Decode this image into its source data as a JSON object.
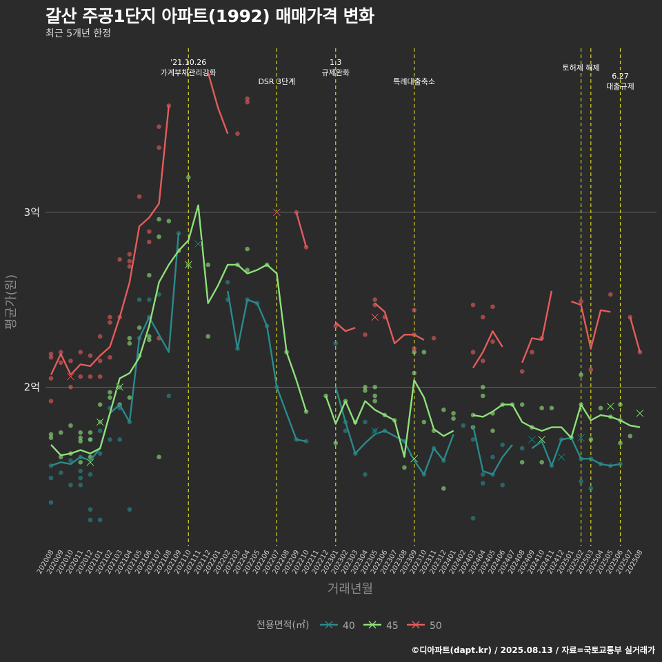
{
  "header": {
    "title": "갈산 주공1단지 아파트(1992) 매매가격 변화",
    "subtitle": "최근 5개년 한정"
  },
  "footer": {
    "caption": "©디아파트(dapt.kr) / 2025.08.13 / 자료=국토교통부 실거래가"
  },
  "colors": {
    "40": "#2a8a8c",
    "45": "#8ee07a",
    "50": "#e55c5c",
    "grid": "#7a7a7a",
    "vline": "#d6d62a"
  },
  "chart_data": {
    "type": "line",
    "xlabel": "거래년월",
    "ylabel": "평균가(원)",
    "x": [
      "202008",
      "202009",
      "202010",
      "202011",
      "202012",
      "202101",
      "202102",
      "202103",
      "202104",
      "202105",
      "202106",
      "202107",
      "202108",
      "202109",
      "202110",
      "202111",
      "202112",
      "202201",
      "202202",
      "202203",
      "202204",
      "202205",
      "202206",
      "202207",
      "202208",
      "202209",
      "202210",
      "202211",
      "202212",
      "202301",
      "202302",
      "202303",
      "202304",
      "202305",
      "202306",
      "202307",
      "202308",
      "202309",
      "202310",
      "202311",
      "202312",
      "202401",
      "202402",
      "202403",
      "202404",
      "202405",
      "202406",
      "202407",
      "202408",
      "202409",
      "202410",
      "202411",
      "202412",
      "202501",
      "202502",
      "202503",
      "202504",
      "202505",
      "202506",
      "202507",
      "202508"
    ],
    "ylim": [
      10900,
      39700
    ],
    "yticks": [
      {
        "value": 20000,
        "label": "2억"
      },
      {
        "value": 30000,
        "label": "3억"
      }
    ],
    "legend": {
      "title": "전용면적(㎡)",
      "position": "bottom",
      "items": [
        "40",
        "45",
        "50"
      ]
    },
    "series": [
      {
        "name": "40",
        "values": [
          15500,
          15700,
          15600,
          16000,
          15800,
          16500,
          18500,
          19000,
          18000,
          22800,
          24000,
          23000,
          22000,
          28800,
          null,
          null,
          null,
          null,
          25500,
          22200,
          25000,
          24800,
          23500,
          20000,
          18500,
          17000,
          16900,
          null,
          null,
          20000,
          18000,
          16200,
          16800,
          17300,
          17500,
          17200,
          16900,
          15800,
          15000,
          16500,
          15800,
          17300,
          null,
          17800,
          15200,
          15000,
          16000,
          16700,
          null,
          16500,
          16900,
          15500,
          17000,
          17100,
          15900,
          15900,
          15600,
          15500,
          15600,
          null,
          null
        ]
      },
      {
        "name": "45",
        "values": [
          16700,
          16100,
          16200,
          16400,
          16200,
          16500,
          18500,
          20500,
          20800,
          21700,
          23500,
          26000,
          27000,
          27800,
          28400,
          30400,
          24800,
          25800,
          27000,
          27000,
          26500,
          26700,
          27000,
          26500,
          22000,
          20400,
          18600,
          null,
          19500,
          17900,
          19200,
          17900,
          19200,
          18700,
          18400,
          18100,
          16000,
          20400,
          19400,
          17600,
          17200,
          17500,
          null,
          18400,
          18300,
          18600,
          19000,
          19000,
          18000,
          17700,
          17500,
          17700,
          17700,
          17100,
          19000,
          18100,
          18400,
          18300,
          18100,
          17800,
          17700
        ]
      },
      {
        "name": "50",
        "values": [
          20700,
          21900,
          20700,
          21300,
          21200,
          21800,
          22300,
          24000,
          26000,
          29200,
          29700,
          30500,
          36100,
          null,
          null,
          null,
          38000,
          36000,
          34500,
          null,
          36000,
          null,
          null,
          null,
          null,
          30000,
          28000,
          null,
          null,
          23700,
          23200,
          23400,
          null,
          24800,
          24300,
          22500,
          23000,
          23000,
          22700,
          null,
          21000,
          null,
          null,
          21100,
          22000,
          23200,
          22300,
          null,
          21400,
          22800,
          22700,
          25500,
          null,
          24900,
          24700,
          22200,
          24400,
          24300,
          null,
          24000,
          22000
        ]
      }
    ],
    "points": {
      "40": [
        [
          "202008",
          15500
        ],
        [
          "202008",
          14800
        ],
        [
          "202008",
          13400
        ],
        [
          "202009",
          15100
        ],
        [
          "202010",
          14400
        ],
        [
          "202010",
          15800
        ],
        [
          "202011",
          15200
        ],
        [
          "202011",
          14800
        ],
        [
          "202011",
          16000
        ],
        [
          "202011",
          14400
        ],
        [
          "202012",
          13000
        ],
        [
          "202012",
          12400
        ],
        [
          "202012",
          15000
        ],
        [
          "202012",
          17000
        ],
        [
          "202101",
          12400
        ],
        [
          "202101",
          17500
        ],
        [
          "202101",
          16200
        ],
        [
          "202102",
          17000
        ],
        [
          "202102",
          18800
        ],
        [
          "202103",
          18800
        ],
        [
          "202103",
          17000
        ],
        [
          "202104",
          13000
        ],
        [
          "202104",
          18000
        ],
        [
          "202105",
          25000
        ],
        [
          "202105",
          22800
        ],
        [
          "202106",
          25000
        ],
        [
          "202106",
          24000
        ],
        [
          "202107",
          25300
        ],
        [
          "202108",
          19500
        ],
        [
          "202109",
          28800
        ],
        [
          "202202",
          26000
        ],
        [
          "202202",
          25000
        ],
        [
          "202203",
          22200
        ],
        [
          "202204",
          25000
        ],
        [
          "202205",
          24800
        ],
        [
          "202206",
          23500
        ],
        [
          "202207",
          20000
        ],
        [
          "202209",
          17000
        ],
        [
          "202210",
          16900
        ],
        [
          "202301",
          22500
        ],
        [
          "202302",
          18000
        ],
        [
          "202302",
          17500
        ],
        [
          "202303",
          16200
        ],
        [
          "202304",
          18000
        ],
        [
          "202304",
          15000
        ],
        [
          "202305",
          17500
        ],
        [
          "202305",
          17500
        ],
        [
          "202306",
          17500
        ],
        [
          "202308",
          16900
        ],
        [
          "202310",
          15000
        ],
        [
          "202311",
          16500
        ],
        [
          "202312",
          15800
        ],
        [
          "202402",
          17800
        ],
        [
          "202403",
          17000
        ],
        [
          "202403",
          12500
        ],
        [
          "202404",
          15000
        ],
        [
          "202404",
          14500
        ],
        [
          "202405",
          16000
        ],
        [
          "202405",
          15000
        ],
        [
          "202406",
          14400
        ],
        [
          "202406",
          16700
        ],
        [
          "202408",
          16500
        ],
        [
          "202410",
          16900
        ],
        [
          "202411",
          15500
        ],
        [
          "202412",
          17000
        ],
        [
          "202501",
          17100
        ],
        [
          "202502",
          15900
        ],
        [
          "202502",
          14600
        ],
        [
          "202503",
          15900
        ],
        [
          "202503",
          14200
        ],
        [
          "202504",
          15600
        ],
        [
          "202505",
          15500
        ],
        [
          "202506",
          15600
        ]
      ],
      "45": [
        [
          "202008",
          17300
        ],
        [
          "202008",
          17100
        ],
        [
          "202009",
          17400
        ],
        [
          "202009",
          16000
        ],
        [
          "202010",
          17800
        ],
        [
          "202010",
          16200
        ],
        [
          "202011",
          17400
        ],
        [
          "202011",
          17100
        ],
        [
          "202011",
          16900
        ],
        [
          "202011",
          15700
        ],
        [
          "202012",
          17400
        ],
        [
          "202012",
          17000
        ],
        [
          "202012",
          16000
        ],
        [
          "202101",
          19000
        ],
        [
          "202101",
          18000
        ],
        [
          "202102",
          19700
        ],
        [
          "202102",
          19400
        ],
        [
          "202103",
          19000
        ],
        [
          "202103",
          20000
        ],
        [
          "202104",
          22800
        ],
        [
          "202104",
          22500
        ],
        [
          "202104",
          19400
        ],
        [
          "202105",
          21800
        ],
        [
          "202105",
          23400
        ],
        [
          "202106",
          22700
        ],
        [
          "202106",
          22900
        ],
        [
          "202106",
          26400
        ],
        [
          "202107",
          29600
        ],
        [
          "202107",
          28600
        ],
        [
          "202107",
          16000
        ],
        [
          "202108",
          29500
        ],
        [
          "202109",
          27800
        ],
        [
          "202110",
          32000
        ],
        [
          "202110",
          27000
        ],
        [
          "202112",
          27000
        ],
        [
          "202112",
          22900
        ],
        [
          "202203",
          27000
        ],
        [
          "202204",
          27900
        ],
        [
          "202204",
          26700
        ],
        [
          "202206",
          27000
        ],
        [
          "202208",
          22000
        ],
        [
          "202210",
          18600
        ],
        [
          "202212",
          19500
        ],
        [
          "202301",
          16800
        ],
        [
          "202302",
          19200
        ],
        [
          "202303",
          18000
        ],
        [
          "202304",
          19800
        ],
        [
          "202304",
          20000
        ],
        [
          "202305",
          19200
        ],
        [
          "202305",
          19500
        ],
        [
          "202305",
          20000
        ],
        [
          "202306",
          18400
        ],
        [
          "202307",
          18100
        ],
        [
          "202308",
          15400
        ],
        [
          "202309",
          22000
        ],
        [
          "202309",
          20800
        ],
        [
          "202310",
          22000
        ],
        [
          "202310",
          18000
        ],
        [
          "202311",
          17500
        ],
        [
          "202312",
          18700
        ],
        [
          "202312",
          14200
        ],
        [
          "202401",
          18500
        ],
        [
          "202401",
          18200
        ],
        [
          "202403",
          18400
        ],
        [
          "202403",
          17700
        ],
        [
          "202404",
          19500
        ],
        [
          "202404",
          20000
        ],
        [
          "202405",
          17500
        ],
        [
          "202405",
          18500
        ],
        [
          "202406",
          19000
        ],
        [
          "202407",
          19000
        ],
        [
          "202408",
          19000
        ],
        [
          "202408",
          15700
        ],
        [
          "202409",
          17700
        ],
        [
          "202410",
          18800
        ],
        [
          "202410",
          15700
        ],
        [
          "202411",
          18800
        ],
        [
          "202501",
          17100
        ],
        [
          "202502",
          19000
        ],
        [
          "202502",
          20700
        ],
        [
          "202503",
          17000
        ],
        [
          "202504",
          18800
        ],
        [
          "202505",
          18300
        ],
        [
          "202506",
          19000
        ],
        [
          "202506",
          18100
        ],
        [
          "202506",
          16800
        ],
        [
          "202507",
          17200
        ]
      ],
      "50": [
        [
          "202008",
          21900
        ],
        [
          "202008",
          21700
        ],
        [
          "202008",
          20500
        ],
        [
          "202008",
          19200
        ],
        [
          "202009",
          22000
        ],
        [
          "202009",
          21400
        ],
        [
          "202010",
          21500
        ],
        [
          "202010",
          20000
        ],
        [
          "202011",
          22000
        ],
        [
          "202011",
          20600
        ],
        [
          "202012",
          21800
        ],
        [
          "202012",
          20600
        ],
        [
          "202101",
          22900
        ],
        [
          "202101",
          21500
        ],
        [
          "202101",
          20600
        ],
        [
          "202102",
          24000
        ],
        [
          "202102",
          23700
        ],
        [
          "202102",
          21700
        ],
        [
          "202103",
          24000
        ],
        [
          "202103",
          27300
        ],
        [
          "202104",
          27600
        ],
        [
          "202104",
          26900
        ],
        [
          "202104",
          27200
        ],
        [
          "202105",
          30900
        ],
        [
          "202106",
          28300
        ],
        [
          "202106",
          28900
        ],
        [
          "202107",
          34900
        ],
        [
          "202107",
          33700
        ],
        [
          "202107",
          22800
        ],
        [
          "202108",
          36100
        ],
        [
          "202203",
          34500
        ],
        [
          "202204",
          36300
        ],
        [
          "202204",
          36500
        ],
        [
          "202209",
          30000
        ],
        [
          "202210",
          28000
        ],
        [
          "202301",
          23500
        ],
        [
          "202304",
          23000
        ],
        [
          "202305",
          25000
        ],
        [
          "202305",
          24700
        ],
        [
          "202306",
          24000
        ],
        [
          "202309",
          24400
        ],
        [
          "202309",
          23000
        ],
        [
          "202309",
          22200
        ],
        [
          "202311",
          22800
        ],
        [
          "202403",
          24700
        ],
        [
          "202403",
          22000
        ],
        [
          "202404",
          24000
        ],
        [
          "202404",
          21500
        ],
        [
          "202405",
          24600
        ],
        [
          "202405",
          22600
        ],
        [
          "202408",
          20900
        ],
        [
          "202409",
          22000
        ],
        [
          "202410",
          22800
        ],
        [
          "202502",
          24900
        ],
        [
          "202503",
          21000
        ],
        [
          "202505",
          25300
        ],
        [
          "202507",
          24000
        ],
        [
          "202508",
          22000
        ]
      ]
    },
    "markers": [
      {
        "series": "40",
        "x": "202111",
        "y": 28200
      },
      {
        "series": "40",
        "x": "202305",
        "y": 17500
      },
      {
        "series": "40",
        "x": "202409",
        "y": 17000
      },
      {
        "series": "40",
        "x": "202412",
        "y": 16000
      },
      {
        "series": "40",
        "x": "202502",
        "y": 17100
      },
      {
        "series": "45",
        "x": "202101",
        "y": 18000
      },
      {
        "series": "45",
        "x": "202103",
        "y": 20000
      },
      {
        "series": "45",
        "x": "202012",
        "y": 15700
      },
      {
        "series": "45",
        "x": "202110",
        "y": 27000
      },
      {
        "series": "45",
        "x": "202309",
        "y": 15900
      },
      {
        "series": "45",
        "x": "202410",
        "y": 17000
      },
      {
        "series": "45",
        "x": "202505",
        "y": 18900
      },
      {
        "series": "45",
        "x": "202508",
        "y": 18500
      },
      {
        "series": "50",
        "x": "202010",
        "y": 20600
      },
      {
        "series": "50",
        "x": "202207",
        "y": 30000
      },
      {
        "series": "50",
        "x": "202305",
        "y": 24000
      }
    ],
    "annotations": [
      {
        "x": "202110",
        "lines": [
          "'21.10.26",
          "가계부채관리강화"
        ],
        "row": 0
      },
      {
        "x": "202207",
        "lines": [
          "DSR 3단계"
        ],
        "row": 1
      },
      {
        "x": "202301",
        "lines": [
          "1.3",
          "규제완화"
        ],
        "row": 0
      },
      {
        "x": "202309",
        "lines": [
          "특례대출축소"
        ],
        "row": 1
      },
      {
        "x": "202502",
        "lines": [
          "토허제 해제"
        ],
        "row": 2
      },
      {
        "x": "202503",
        "lines": [],
        "row": 2
      },
      {
        "x": "202506",
        "lines": [
          "6.27",
          "대출규제"
        ],
        "row": 3
      }
    ]
  }
}
